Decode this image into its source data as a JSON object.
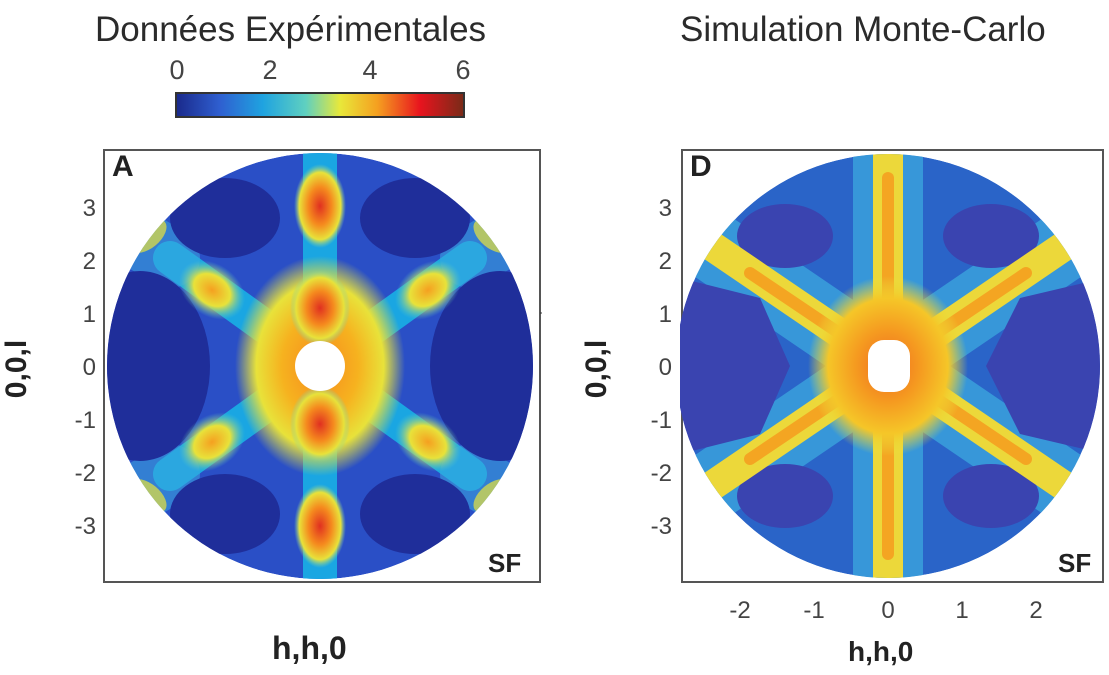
{
  "titles": {
    "left": "Données Expérimentales",
    "right": "Simulation Monte-Carlo"
  },
  "colorbar": {
    "ticks": [
      "0",
      "2",
      "4",
      "6"
    ],
    "range": [
      0,
      6
    ],
    "colors": [
      "#1a2a8c",
      "#2f5fd0",
      "#1fa3e0",
      "#5fd0c0",
      "#e8e83a",
      "#f5a020",
      "#e8141e",
      "#7a2a18"
    ]
  },
  "panel_a": {
    "letter": "A",
    "tag": "SF",
    "ylabel": "0,0,l",
    "xlabel": "h,h,0",
    "yticks": [
      "3",
      "2",
      "1",
      "0",
      "-1",
      "-2",
      "-3"
    ]
  },
  "panel_d": {
    "letter": "D",
    "tag": "SF",
    "ylabel": "0,0,l",
    "xlabel": "h,h,0",
    "yticks": [
      "3",
      "2",
      "1",
      "0",
      "-1",
      "-2",
      "-3"
    ],
    "xticks": [
      "-2",
      "-1",
      "0",
      "1",
      "2"
    ]
  }
}
